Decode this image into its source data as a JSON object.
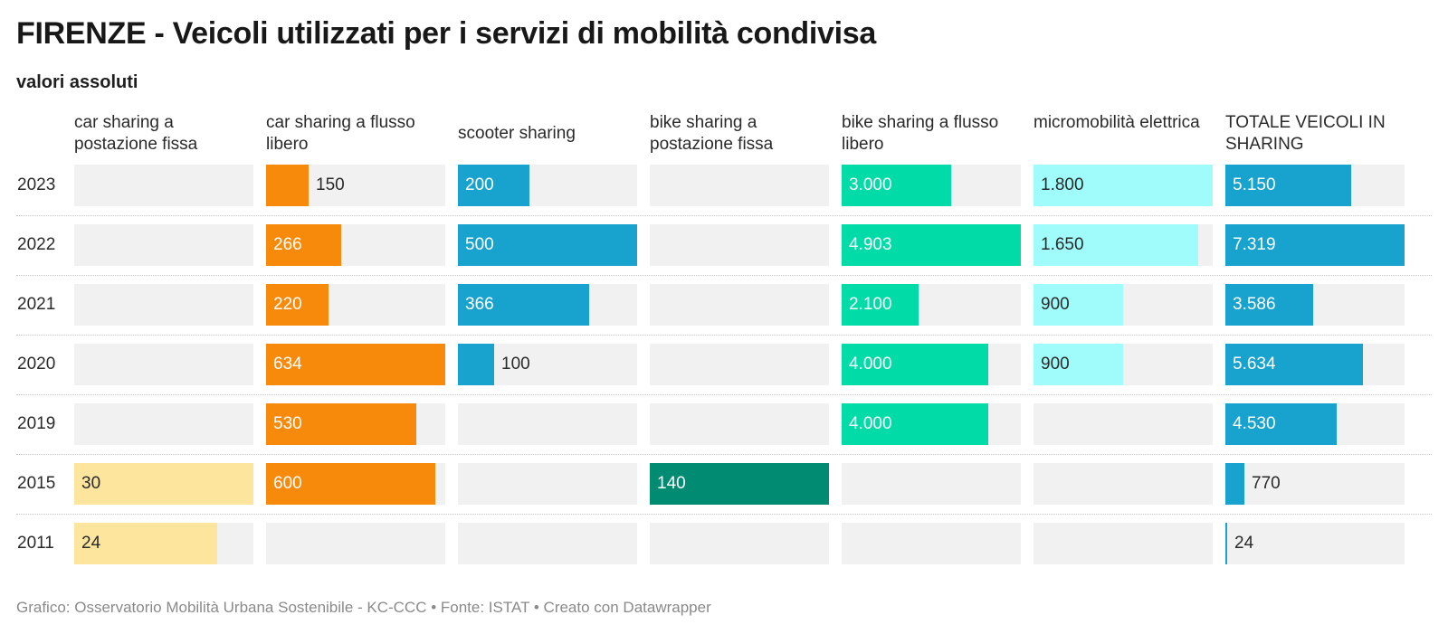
{
  "title": "FIRENZE - Veicoli utilizzati per i servizi di mobilità condivisa",
  "subtitle": "valori assoluti",
  "footer": "Grafico: Osservatorio Mobilità Urbana Sostenibile - KC-CCC • Fonte: ISTAT • Creato con Datawrapper",
  "colors": {
    "car_fixed": "#fde59e",
    "car_free": "#f78a0a",
    "scooter": "#18a2ce",
    "bike_fixed": "#008b72",
    "bike_free": "#00dba8",
    "micro": "#a0fcfa",
    "total": "#18a2ce",
    "cell_bg": "#f1f1f1"
  },
  "chart_data": {
    "type": "bar",
    "categories": [
      "2023",
      "2022",
      "2021",
      "2020",
      "2019",
      "2015",
      "2011"
    ],
    "series": [
      {
        "name": "car sharing a postazione fissa",
        "values": [
          null,
          null,
          null,
          null,
          null,
          30,
          24
        ],
        "labels": [
          "",
          "",
          "",
          "",
          "",
          "30",
          "24"
        ],
        "max": 30
      },
      {
        "name": "car sharing a flusso libero",
        "values": [
          150,
          266,
          220,
          634,
          530,
          600,
          null
        ],
        "labels": [
          "150",
          "266",
          "220",
          "634",
          "530",
          "600",
          ""
        ],
        "max": 634
      },
      {
        "name": "scooter sharing",
        "values": [
          200,
          500,
          366,
          100,
          null,
          null,
          null
        ],
        "labels": [
          "200",
          "500",
          "366",
          "100",
          "",
          "",
          ""
        ],
        "max": 500
      },
      {
        "name": "bike sharing a postazione fissa",
        "values": [
          null,
          null,
          null,
          null,
          null,
          140,
          null
        ],
        "labels": [
          "",
          "",
          "",
          "",
          "",
          "140",
          ""
        ],
        "max": 140
      },
      {
        "name": "bike sharing a flusso libero",
        "values": [
          3000,
          4903,
          2100,
          4000,
          4000,
          null,
          null
        ],
        "labels": [
          "3.000",
          "4.903",
          "2.100",
          "4.000",
          "4.000",
          "",
          ""
        ],
        "max": 4903
      },
      {
        "name": "micromobilità elettrica",
        "values": [
          1800,
          1650,
          900,
          900,
          null,
          null,
          null
        ],
        "labels": [
          "1.800",
          "1.650",
          "900",
          "900",
          "",
          "",
          ""
        ],
        "max": 1800
      },
      {
        "name": "TOTALE VEICOLI IN SHARING",
        "values": [
          5150,
          7319,
          3586,
          5634,
          4530,
          770,
          24
        ],
        "labels": [
          "5.150",
          "7.319",
          "3.586",
          "5.634",
          "4.530",
          "770",
          "24"
        ],
        "max": 7319
      }
    ]
  }
}
